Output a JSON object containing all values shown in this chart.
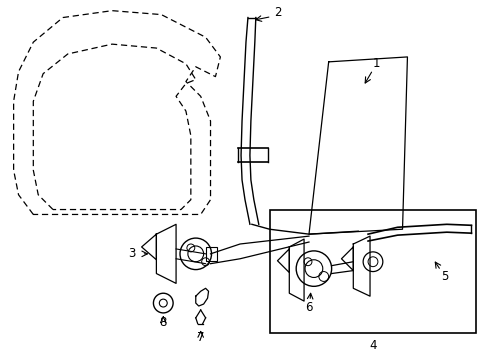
{
  "background_color": "#ffffff",
  "line_color": "#000000",
  "figure_width": 4.89,
  "figure_height": 3.6,
  "dpi": 100,
  "label_fontsize": 8.5
}
